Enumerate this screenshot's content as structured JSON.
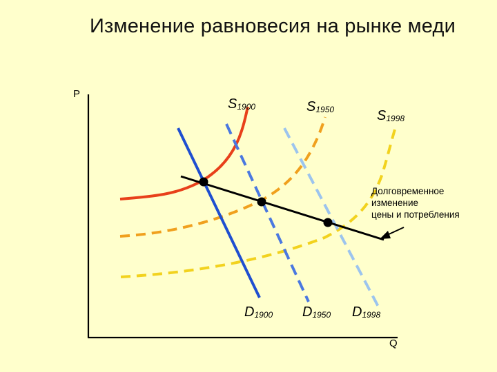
{
  "title": "Изменение равновесия на рынке меди",
  "axes": {
    "y_label": "P",
    "x_label": "Q"
  },
  "curves": {
    "supply": [
      {
        "label": "S",
        "subscript": "1900",
        "color": "#e8401a",
        "style": "solid"
      },
      {
        "label": "S",
        "subscript": "1950",
        "color": "#f0a020",
        "style": "dashed"
      },
      {
        "label": "S",
        "subscript": "1998",
        "color": "#f0d020",
        "style": "dashed"
      }
    ],
    "demand": [
      {
        "label": "D",
        "subscript": "1900",
        "color": "#1f4fd0",
        "style": "solid"
      },
      {
        "label": "D",
        "subscript": "1950",
        "color": "#4a78e0",
        "style": "dashed"
      },
      {
        "label": "D",
        "subscript": "1998",
        "color": "#9cc4ee",
        "style": "dashed"
      }
    ]
  },
  "equilibria_count": 3,
  "annotation": {
    "lines": [
      "Долговременное",
      "изменение",
      "цены и потребления"
    ]
  }
}
